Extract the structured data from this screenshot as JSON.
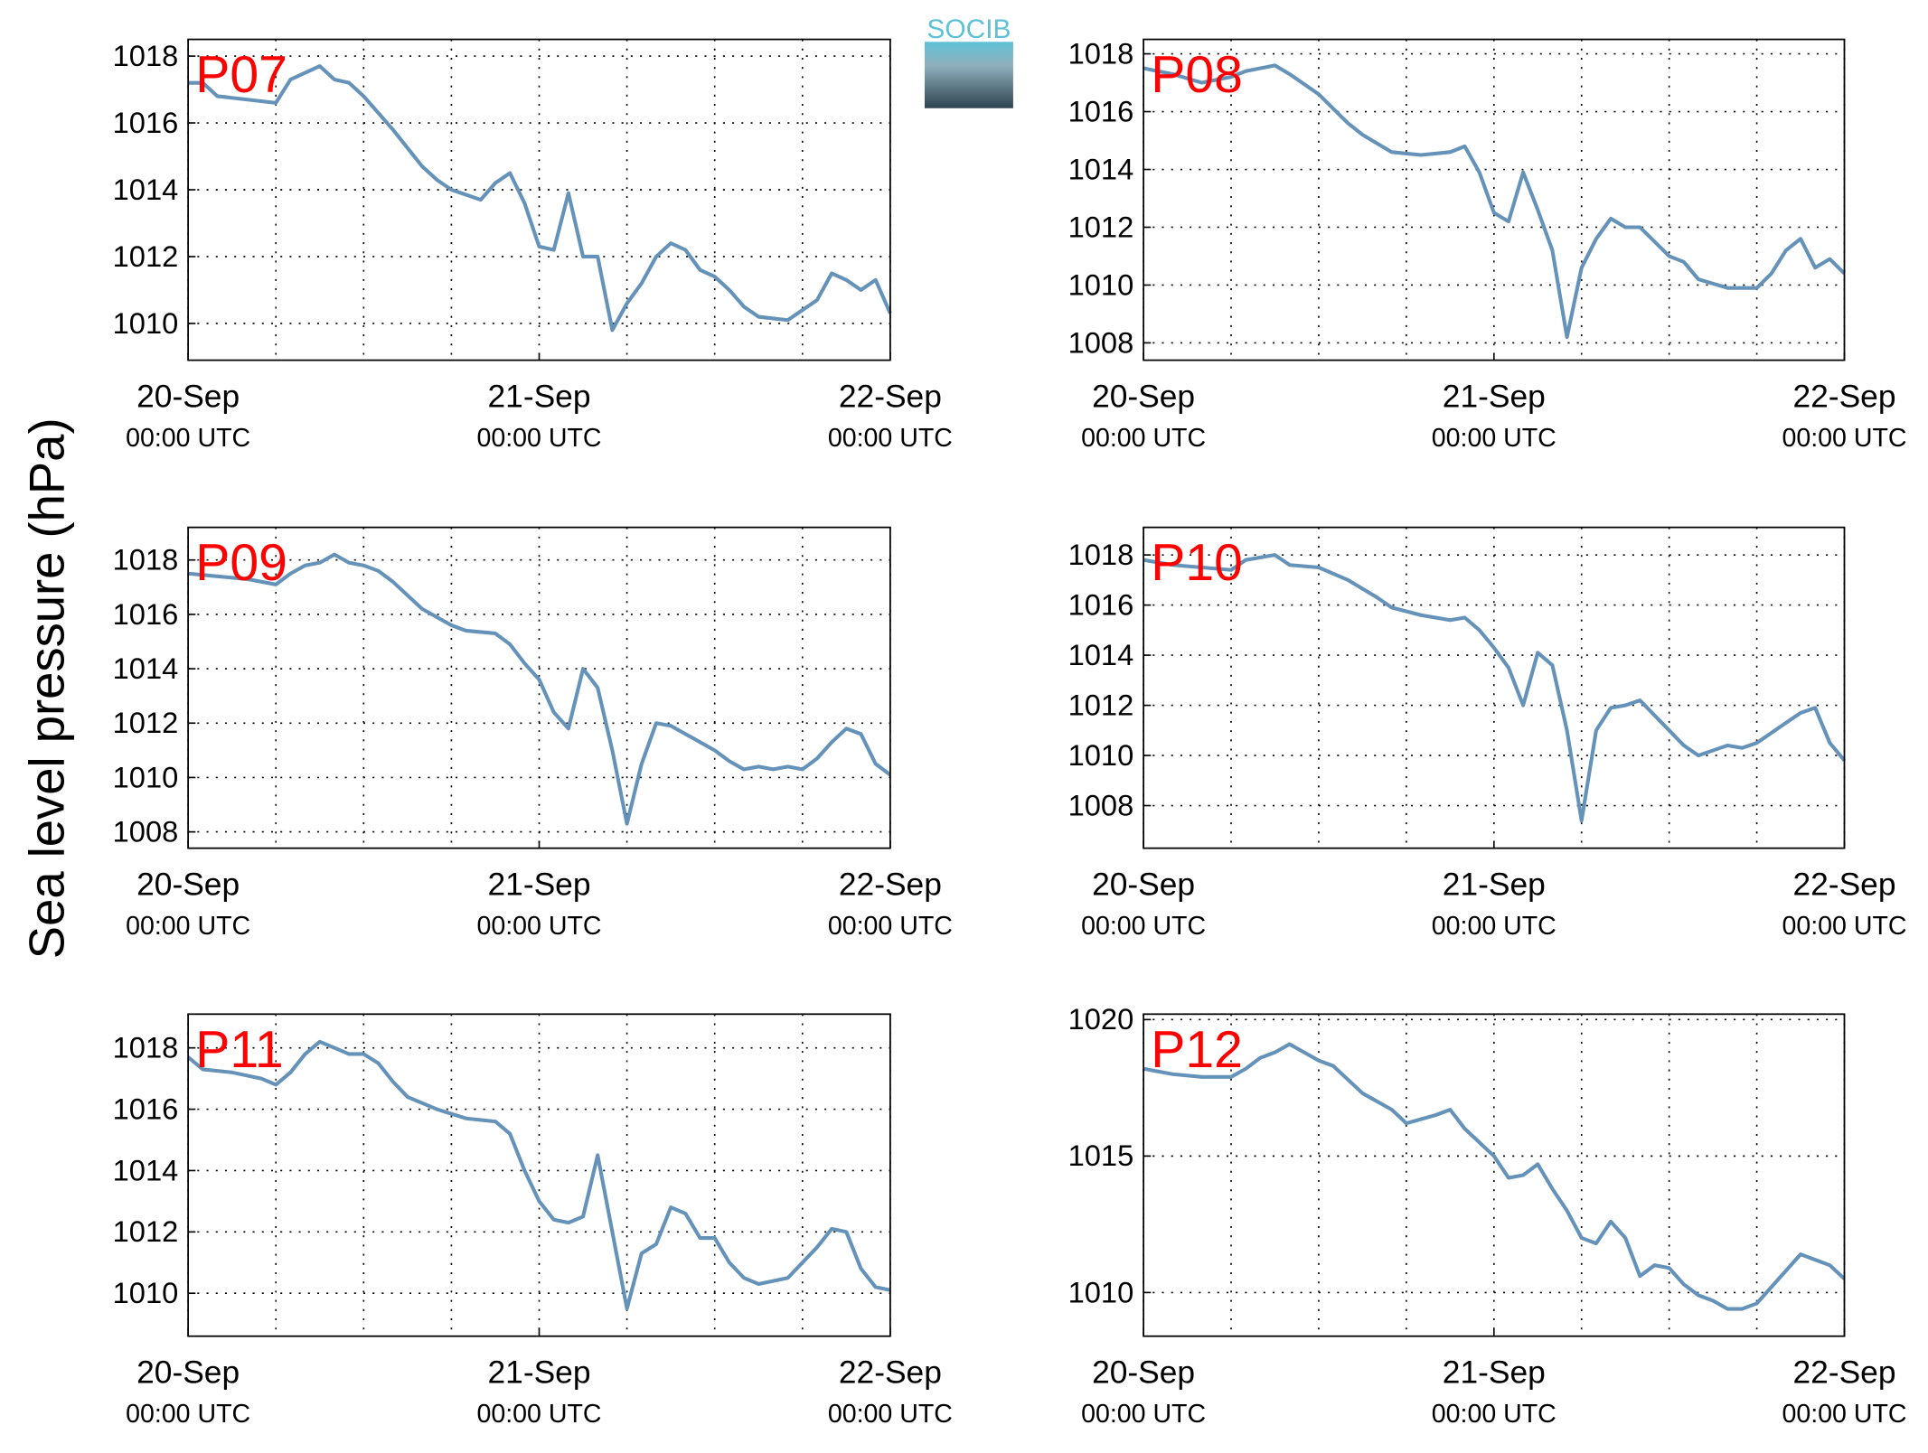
{
  "ylabel": "Sea level pressure (hPa)",
  "logo": "SOCIB",
  "chart_data": [
    {
      "type": "line",
      "title": "P07",
      "color": "#6592b9",
      "xlim": [
        "20-Sep 00:00",
        "22-Sep 00:00"
      ],
      "xticks": [
        {
          "value": "20-Sep 00:00",
          "label": [
            "20-Sep",
            "00:00 UTC"
          ]
        },
        {
          "value": "21-Sep 00:00",
          "label": [
            "21-Sep",
            "00:00 UTC"
          ]
        },
        {
          "value": "22-Sep 00:00",
          "label": [
            "22-Sep",
            "00:00 UTC"
          ]
        }
      ],
      "xminor": [
        "20-Sep 06:00",
        "20-Sep 12:00",
        "20-Sep 18:00",
        "21-Sep 06:00",
        "21-Sep 12:00",
        "21-Sep 18:00"
      ],
      "ylim": [
        1008.9,
        1018.5
      ],
      "yticks": [
        1010,
        1012,
        1014,
        1016,
        1018
      ],
      "grid": true,
      "x": [
        "20-Sep 00:00",
        "20-Sep 01:00",
        "20-Sep 02:00",
        "20-Sep 04:00",
        "20-Sep 06:00",
        "20-Sep 07:00",
        "20-Sep 09:00",
        "20-Sep 10:00",
        "20-Sep 11:00",
        "20-Sep 12:00",
        "20-Sep 14:00",
        "20-Sep 16:00",
        "20-Sep 17:00",
        "20-Sep 18:00",
        "20-Sep 20:00",
        "20-Sep 21:00",
        "20-Sep 22:00",
        "20-Sep 23:00",
        "21-Sep 00:00",
        "21-Sep 01:00",
        "21-Sep 02:00",
        "21-Sep 03:00",
        "21-Sep 04:00",
        "21-Sep 05:00",
        "21-Sep 06:00",
        "21-Sep 07:00",
        "21-Sep 08:00",
        "21-Sep 09:00",
        "21-Sep 10:00",
        "21-Sep 11:00",
        "21-Sep 12:00",
        "21-Sep 13:00",
        "21-Sep 14:00",
        "21-Sep 15:00",
        "21-Sep 17:00",
        "21-Sep 19:00",
        "21-Sep 20:00",
        "21-Sep 21:00",
        "21-Sep 22:00",
        "21-Sep 23:00",
        "22-Sep 00:00"
      ],
      "values": [
        1017.2,
        1017.2,
        1016.8,
        1016.7,
        1016.6,
        1017.3,
        1017.7,
        1017.3,
        1017.2,
        1016.8,
        1015.8,
        1014.7,
        1014.3,
        1014.0,
        1013.7,
        1014.2,
        1014.5,
        1013.6,
        1012.3,
        1012.2,
        1013.9,
        1012.0,
        1012.0,
        1009.8,
        1010.6,
        1011.2,
        1012.0,
        1012.4,
        1012.2,
        1011.6,
        1011.4,
        1011.0,
        1010.5,
        1010.2,
        1010.1,
        1010.7,
        1011.5,
        1011.3,
        1011.0,
        1011.3,
        1010.3
      ]
    },
    {
      "type": "line",
      "title": "P08",
      "color": "#6592b9",
      "xlim": [
        "20-Sep 00:00",
        "22-Sep 00:00"
      ],
      "xticks": [
        {
          "value": "20-Sep 00:00",
          "label": [
            "20-Sep",
            "00:00 UTC"
          ]
        },
        {
          "value": "21-Sep 00:00",
          "label": [
            "21-Sep",
            "00:00 UTC"
          ]
        },
        {
          "value": "22-Sep 00:00",
          "label": [
            "22-Sep",
            "00:00 UTC"
          ]
        }
      ],
      "xminor": [
        "20-Sep 06:00",
        "20-Sep 12:00",
        "20-Sep 18:00",
        "21-Sep 06:00",
        "21-Sep 12:00",
        "21-Sep 18:00"
      ],
      "ylim": [
        1007.4,
        1018.5
      ],
      "yticks": [
        1008,
        1010,
        1012,
        1014,
        1016,
        1018
      ],
      "grid": true,
      "x": [
        "20-Sep 00:00",
        "20-Sep 02:00",
        "20-Sep 04:00",
        "20-Sep 06:00",
        "20-Sep 07:00",
        "20-Sep 09:00",
        "20-Sep 10:00",
        "20-Sep 12:00",
        "20-Sep 14:00",
        "20-Sep 15:00",
        "20-Sep 17:00",
        "20-Sep 19:00",
        "20-Sep 21:00",
        "20-Sep 22:00",
        "20-Sep 23:00",
        "21-Sep 00:00",
        "21-Sep 01:00",
        "21-Sep 02:00",
        "21-Sep 03:00",
        "21-Sep 04:00",
        "21-Sep 05:00",
        "21-Sep 06:00",
        "21-Sep 07:00",
        "21-Sep 08:00",
        "21-Sep 09:00",
        "21-Sep 10:00",
        "21-Sep 11:00",
        "21-Sep 12:00",
        "21-Sep 13:00",
        "21-Sep 14:00",
        "21-Sep 16:00",
        "21-Sep 18:00",
        "21-Sep 19:00",
        "21-Sep 20:00",
        "21-Sep 21:00",
        "21-Sep 22:00",
        "21-Sep 23:00",
        "22-Sep 00:00"
      ],
      "values": [
        1017.5,
        1017.3,
        1017.0,
        1017.2,
        1017.4,
        1017.6,
        1017.3,
        1016.6,
        1015.6,
        1015.2,
        1014.6,
        1014.5,
        1014.6,
        1014.8,
        1013.9,
        1012.5,
        1012.2,
        1013.9,
        1012.6,
        1011.2,
        1008.2,
        1010.6,
        1011.6,
        1012.3,
        1012.0,
        1012.0,
        1011.5,
        1011.0,
        1010.8,
        1010.2,
        1009.9,
        1009.9,
        1010.4,
        1011.2,
        1011.6,
        1010.6,
        1010.9,
        1010.4
      ]
    },
    {
      "type": "line",
      "title": "P09",
      "color": "#6592b9",
      "xlim": [
        "20-Sep 00:00",
        "22-Sep 00:00"
      ],
      "xticks": [
        {
          "value": "20-Sep 00:00",
          "label": [
            "20-Sep",
            "00:00 UTC"
          ]
        },
        {
          "value": "21-Sep 00:00",
          "label": [
            "21-Sep",
            "00:00 UTC"
          ]
        },
        {
          "value": "22-Sep 00:00",
          "label": [
            "22-Sep",
            "00:00 UTC"
          ]
        }
      ],
      "xminor": [
        "20-Sep 06:00",
        "20-Sep 12:00",
        "20-Sep 18:00",
        "21-Sep 06:00",
        "21-Sep 12:00",
        "21-Sep 18:00"
      ],
      "ylim": [
        1007.4,
        1019.2
      ],
      "yticks": [
        1008,
        1010,
        1012,
        1014,
        1016,
        1018
      ],
      "grid": true,
      "x": [
        "20-Sep 00:00",
        "20-Sep 02:00",
        "20-Sep 04:00",
        "20-Sep 06:00",
        "20-Sep 07:00",
        "20-Sep 08:00",
        "20-Sep 09:00",
        "20-Sep 10:00",
        "20-Sep 11:00",
        "20-Sep 12:00",
        "20-Sep 13:00",
        "20-Sep 14:00",
        "20-Sep 15:00",
        "20-Sep 16:00",
        "20-Sep 17:00",
        "20-Sep 18:00",
        "20-Sep 19:00",
        "20-Sep 21:00",
        "20-Sep 22:00",
        "20-Sep 23:00",
        "21-Sep 00:00",
        "21-Sep 01:00",
        "21-Sep 02:00",
        "21-Sep 03:00",
        "21-Sep 04:00",
        "21-Sep 05:00",
        "21-Sep 06:00",
        "21-Sep 07:00",
        "21-Sep 08:00",
        "21-Sep 09:00",
        "21-Sep 10:00",
        "21-Sep 11:00",
        "21-Sep 12:00",
        "21-Sep 13:00",
        "21-Sep 14:00",
        "21-Sep 15:00",
        "21-Sep 16:00",
        "21-Sep 17:00",
        "21-Sep 18:00",
        "21-Sep 19:00",
        "21-Sep 20:00",
        "21-Sep 21:00",
        "21-Sep 22:00",
        "21-Sep 23:00",
        "22-Sep 00:00"
      ],
      "values": [
        1017.5,
        1017.4,
        1017.3,
        1017.1,
        1017.5,
        1017.8,
        1017.9,
        1018.2,
        1017.9,
        1017.8,
        1017.6,
        1017.2,
        1016.7,
        1016.2,
        1015.9,
        1015.6,
        1015.4,
        1015.3,
        1014.9,
        1014.2,
        1013.6,
        1012.4,
        1011.8,
        1014.0,
        1013.3,
        1011.0,
        1008.3,
        1010.5,
        1012.0,
        1011.9,
        1011.6,
        1011.3,
        1011.0,
        1010.6,
        1010.3,
        1010.4,
        1010.3,
        1010.4,
        1010.3,
        1010.7,
        1011.3,
        1011.8,
        1011.6,
        1010.5,
        1010.1
      ]
    },
    {
      "type": "line",
      "title": "P10",
      "color": "#6592b9",
      "xlim": [
        "20-Sep 00:00",
        "22-Sep 00:00"
      ],
      "xticks": [
        {
          "value": "20-Sep 00:00",
          "label": [
            "20-Sep",
            "00:00 UTC"
          ]
        },
        {
          "value": "21-Sep 00:00",
          "label": [
            "21-Sep",
            "00:00 UTC"
          ]
        },
        {
          "value": "22-Sep 00:00",
          "label": [
            "22-Sep",
            "00:00 UTC"
          ]
        }
      ],
      "xminor": [
        "20-Sep 06:00",
        "20-Sep 12:00",
        "20-Sep 18:00",
        "21-Sep 06:00",
        "21-Sep 12:00",
        "21-Sep 18:00"
      ],
      "ylim": [
        1006.3,
        1019.1
      ],
      "yticks": [
        1008,
        1010,
        1012,
        1014,
        1016,
        1018
      ],
      "grid": true,
      "x": [
        "20-Sep 00:00",
        "20-Sep 02:00",
        "20-Sep 04:00",
        "20-Sep 06:00",
        "20-Sep 07:00",
        "20-Sep 09:00",
        "20-Sep 10:00",
        "20-Sep 12:00",
        "20-Sep 14:00",
        "20-Sep 16:00",
        "20-Sep 17:00",
        "20-Sep 19:00",
        "20-Sep 21:00",
        "20-Sep 22:00",
        "20-Sep 23:00",
        "21-Sep 00:00",
        "21-Sep 01:00",
        "21-Sep 02:00",
        "21-Sep 03:00",
        "21-Sep 04:00",
        "21-Sep 05:00",
        "21-Sep 06:00",
        "21-Sep 07:00",
        "21-Sep 08:00",
        "21-Sep 09:00",
        "21-Sep 10:00",
        "21-Sep 11:00",
        "21-Sep 12:00",
        "21-Sep 13:00",
        "21-Sep 14:00",
        "21-Sep 15:00",
        "21-Sep 16:00",
        "21-Sep 17:00",
        "21-Sep 18:00",
        "21-Sep 19:00",
        "21-Sep 20:00",
        "21-Sep 21:00",
        "21-Sep 22:00",
        "21-Sep 23:00",
        "22-Sep 00:00"
      ],
      "values": [
        1017.8,
        1017.6,
        1017.5,
        1017.4,
        1017.8,
        1018.0,
        1017.6,
        1017.5,
        1017.0,
        1016.3,
        1015.9,
        1015.6,
        1015.4,
        1015.5,
        1015.0,
        1014.3,
        1013.5,
        1012.0,
        1014.1,
        1013.6,
        1011.0,
        1007.4,
        1011.0,
        1011.9,
        1012.0,
        1012.2,
        1011.6,
        1011.0,
        1010.4,
        1010.0,
        1010.2,
        1010.4,
        1010.3,
        1010.5,
        1010.9,
        1011.3,
        1011.7,
        1011.9,
        1010.5,
        1009.8
      ]
    },
    {
      "type": "line",
      "title": "P11",
      "color": "#6592b9",
      "xlim": [
        "20-Sep 00:00",
        "22-Sep 00:00"
      ],
      "xticks": [
        {
          "value": "20-Sep 00:00",
          "label": [
            "20-Sep",
            "00:00 UTC"
          ]
        },
        {
          "value": "21-Sep 00:00",
          "label": [
            "21-Sep",
            "00:00 UTC"
          ]
        },
        {
          "value": "22-Sep 00:00",
          "label": [
            "22-Sep",
            "00:00 UTC"
          ]
        }
      ],
      "xminor": [
        "20-Sep 06:00",
        "20-Sep 12:00",
        "20-Sep 18:00",
        "21-Sep 06:00",
        "21-Sep 12:00",
        "21-Sep 18:00"
      ],
      "ylim": [
        1008.6,
        1019.1
      ],
      "yticks": [
        1010,
        1012,
        1014,
        1016,
        1018
      ],
      "grid": true,
      "x": [
        "20-Sep 00:00",
        "20-Sep 01:00",
        "20-Sep 03:00",
        "20-Sep 05:00",
        "20-Sep 06:00",
        "20-Sep 07:00",
        "20-Sep 08:00",
        "20-Sep 09:00",
        "20-Sep 10:00",
        "20-Sep 11:00",
        "20-Sep 12:00",
        "20-Sep 13:00",
        "20-Sep 14:00",
        "20-Sep 15:00",
        "20-Sep 17:00",
        "20-Sep 19:00",
        "20-Sep 21:00",
        "20-Sep 22:00",
        "20-Sep 23:00",
        "21-Sep 00:00",
        "21-Sep 01:00",
        "21-Sep 02:00",
        "21-Sep 03:00",
        "21-Sep 04:00",
        "21-Sep 05:00",
        "21-Sep 06:00",
        "21-Sep 07:00",
        "21-Sep 08:00",
        "21-Sep 09:00",
        "21-Sep 10:00",
        "21-Sep 11:00",
        "21-Sep 12:00",
        "21-Sep 13:00",
        "21-Sep 14:00",
        "21-Sep 15:00",
        "21-Sep 16:00",
        "21-Sep 17:00",
        "21-Sep 18:00",
        "21-Sep 19:00",
        "21-Sep 20:00",
        "21-Sep 21:00",
        "21-Sep 22:00",
        "21-Sep 23:00",
        "22-Sep 00:00"
      ],
      "values": [
        1017.7,
        1017.3,
        1017.2,
        1017.0,
        1016.8,
        1017.2,
        1017.8,
        1018.2,
        1018.0,
        1017.8,
        1017.8,
        1017.5,
        1016.9,
        1016.4,
        1016.0,
        1015.7,
        1015.6,
        1015.2,
        1014.0,
        1013.0,
        1012.4,
        1012.3,
        1012.5,
        1014.5,
        1012.0,
        1009.5,
        1011.3,
        1011.6,
        1012.8,
        1012.6,
        1011.8,
        1011.8,
        1011.0,
        1010.5,
        1010.3,
        1010.4,
        1010.5,
        1011.0,
        1011.5,
        1012.1,
        1012.0,
        1010.8,
        1010.2,
        1010.1
      ]
    },
    {
      "type": "line",
      "title": "P12",
      "color": "#6592b9",
      "xlim": [
        "20-Sep 00:00",
        "22-Sep 00:00"
      ],
      "xticks": [
        {
          "value": "20-Sep 00:00",
          "label": [
            "20-Sep",
            "00:00 UTC"
          ]
        },
        {
          "value": "21-Sep 00:00",
          "label": [
            "21-Sep",
            "00:00 UTC"
          ]
        },
        {
          "value": "22-Sep 00:00",
          "label": [
            "22-Sep",
            "00:00 UTC"
          ]
        }
      ],
      "xminor": [
        "20-Sep 06:00",
        "20-Sep 12:00",
        "20-Sep 18:00",
        "21-Sep 06:00",
        "21-Sep 12:00",
        "21-Sep 18:00"
      ],
      "ylim": [
        1008.4,
        1020.2
      ],
      "yticks": [
        1010,
        1015,
        1020
      ],
      "grid": true,
      "x": [
        "20-Sep 00:00",
        "20-Sep 02:00",
        "20-Sep 04:00",
        "20-Sep 06:00",
        "20-Sep 07:00",
        "20-Sep 08:00",
        "20-Sep 09:00",
        "20-Sep 10:00",
        "20-Sep 11:00",
        "20-Sep 12:00",
        "20-Sep 13:00",
        "20-Sep 14:00",
        "20-Sep 15:00",
        "20-Sep 17:00",
        "20-Sep 18:00",
        "20-Sep 20:00",
        "20-Sep 21:00",
        "20-Sep 22:00",
        "20-Sep 23:00",
        "21-Sep 00:00",
        "21-Sep 01:00",
        "21-Sep 02:00",
        "21-Sep 03:00",
        "21-Sep 04:00",
        "21-Sep 05:00",
        "21-Sep 06:00",
        "21-Sep 07:00",
        "21-Sep 08:00",
        "21-Sep 09:00",
        "21-Sep 10:00",
        "21-Sep 11:00",
        "21-Sep 12:00",
        "21-Sep 13:00",
        "21-Sep 14:00",
        "21-Sep 15:00",
        "21-Sep 16:00",
        "21-Sep 17:00",
        "21-Sep 18:00",
        "21-Sep 19:00",
        "21-Sep 20:00",
        "21-Sep 21:00",
        "21-Sep 22:00",
        "21-Sep 23:00",
        "22-Sep 00:00"
      ],
      "values": [
        1018.2,
        1018.0,
        1017.9,
        1017.9,
        1018.2,
        1018.6,
        1018.8,
        1019.1,
        1018.8,
        1018.5,
        1018.3,
        1017.8,
        1017.3,
        1016.7,
        1016.2,
        1016.5,
        1016.7,
        1016.0,
        1015.5,
        1015.0,
        1014.2,
        1014.3,
        1014.7,
        1013.8,
        1013.0,
        1012.0,
        1011.8,
        1012.6,
        1012.0,
        1010.6,
        1011.0,
        1010.9,
        1010.3,
        1009.9,
        1009.7,
        1009.4,
        1009.4,
        1009.6,
        1010.2,
        1010.8,
        1011.4,
        1011.2,
        1011.0,
        1010.5
      ]
    }
  ]
}
